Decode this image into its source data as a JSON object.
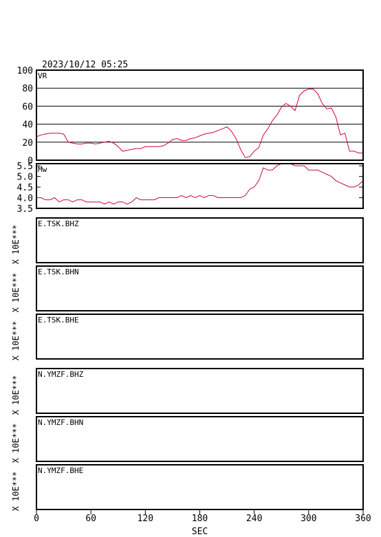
{
  "header": {
    "datetime": "2023/10/12 05:25"
  },
  "chart_data": [
    {
      "type": "line",
      "label": "VR",
      "ylim": [
        0,
        100
      ],
      "yticks": [
        "0",
        "20",
        "40",
        "60",
        "80",
        "100"
      ],
      "grid": true,
      "x": [
        0,
        5,
        10,
        15,
        20,
        25,
        30,
        35,
        40,
        45,
        50,
        55,
        60,
        65,
        70,
        75,
        80,
        85,
        90,
        95,
        100,
        105,
        110,
        115,
        120,
        125,
        130,
        135,
        140,
        145,
        150,
        155,
        160,
        165,
        170,
        175,
        180,
        185,
        190,
        195,
        200,
        205,
        210,
        215,
        220,
        225,
        230,
        235,
        240,
        245,
        250,
        255,
        260,
        265,
        270,
        275,
        280,
        285,
        290,
        295,
        300,
        305,
        310,
        315,
        320,
        325,
        330,
        335,
        340,
        345,
        350,
        355,
        360
      ],
      "y": [
        26,
        28,
        29,
        30,
        30,
        30,
        29,
        20,
        19,
        18,
        18,
        19,
        19,
        18,
        19,
        20,
        21,
        19,
        15,
        10,
        11,
        12,
        13,
        13,
        15,
        15,
        15,
        15,
        16,
        19,
        23,
        24,
        22,
        22,
        24,
        25,
        27,
        29,
        30,
        31,
        33,
        35,
        37,
        32,
        24,
        12,
        3,
        4,
        10,
        14,
        28,
        35,
        44,
        50,
        59,
        63,
        60,
        55,
        72,
        77,
        79,
        79,
        74,
        63,
        57,
        58,
        48,
        28,
        30,
        10,
        10,
        8,
        8
      ],
      "title": "",
      "xlabel": "",
      "ylabel": ""
    },
    {
      "type": "line",
      "label": "Mw",
      "ylim": [
        3.5,
        5.6
      ],
      "yticks": [
        "3.5",
        "4.0",
        "4.5",
        "5.0",
        "5.5"
      ],
      "grid": false,
      "x": [
        0,
        5,
        10,
        15,
        20,
        25,
        30,
        35,
        40,
        45,
        50,
        55,
        60,
        65,
        70,
        75,
        80,
        85,
        90,
        95,
        100,
        105,
        110,
        115,
        120,
        125,
        130,
        135,
        140,
        145,
        150,
        155,
        160,
        165,
        170,
        175,
        180,
        185,
        190,
        195,
        200,
        205,
        210,
        215,
        220,
        225,
        230,
        235,
        240,
        245,
        250,
        255,
        260,
        265,
        270,
        275,
        280,
        285,
        290,
        295,
        300,
        305,
        310,
        315,
        320,
        325,
        330,
        335,
        340,
        345,
        350,
        355,
        360
      ],
      "y": [
        4.0,
        4.0,
        3.9,
        3.9,
        4.0,
        3.8,
        3.9,
        3.9,
        3.8,
        3.9,
        3.9,
        3.8,
        3.8,
        3.8,
        3.8,
        3.7,
        3.8,
        3.7,
        3.8,
        3.8,
        3.7,
        3.8,
        4.0,
        3.9,
        3.9,
        3.9,
        3.9,
        4.0,
        4.0,
        4.0,
        4.0,
        4.0,
        4.1,
        4.0,
        4.1,
        4.0,
        4.1,
        4.0,
        4.1,
        4.1,
        4.0,
        4.0,
        4.0,
        4.0,
        4.0,
        4.0,
        4.1,
        4.4,
        4.5,
        4.8,
        5.4,
        5.3,
        5.3,
        5.5,
        5.6,
        5.7,
        5.6,
        5.5,
        5.5,
        5.5,
        5.3,
        5.3,
        5.3,
        5.2,
        5.1,
        5.0,
        4.8,
        4.7,
        4.6,
        4.5,
        4.5,
        4.6,
        4.8
      ],
      "title": "",
      "xlabel": "",
      "ylabel": ""
    },
    {
      "type": "line",
      "label": "E.TSK.BHZ",
      "ylabel": "X 10E***",
      "x": [],
      "y": []
    },
    {
      "type": "line",
      "label": "E.TSK.BHN",
      "ylabel": "X 10E***",
      "x": [],
      "y": []
    },
    {
      "type": "line",
      "label": "E.TSK.BHE",
      "ylabel": "X 10E***",
      "x": [],
      "y": []
    },
    {
      "type": "line",
      "label": "N.YMZF.BHZ",
      "ylabel": "X 10E***",
      "x": [],
      "y": []
    },
    {
      "type": "line",
      "label": "N.YMZF.BHN",
      "ylabel": "X 10E***",
      "x": [],
      "y": []
    },
    {
      "type": "line",
      "label": "N.YMZF.BHE",
      "ylabel": "X 10E***",
      "x": [],
      "y": []
    }
  ],
  "xaxis": {
    "xlim": [
      0,
      360
    ],
    "ticks": [
      "0",
      "60",
      "120",
      "180",
      "240",
      "300",
      "360"
    ],
    "label": "SEC"
  },
  "colors": {
    "series": "#d0004a",
    "frame": "#000000"
  }
}
